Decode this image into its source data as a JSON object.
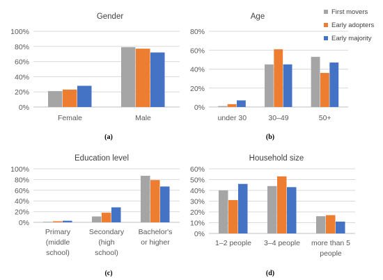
{
  "colors": {
    "first_movers": "#A5A5A5",
    "early_adopters": "#ED7D31",
    "early_majority": "#4472C4",
    "gridline": "#D9D9D9",
    "axis": "#BFBFBF"
  },
  "legend": {
    "items": [
      {
        "label": "First movers",
        "color": "#A5A5A5"
      },
      {
        "label": "Early adopters",
        "color": "#ED7D31"
      },
      {
        "label": "Early majority",
        "color": "#4472C4"
      }
    ],
    "placement": "top-right"
  },
  "chart_data": [
    {
      "type": "bar",
      "panel": "(a)",
      "title": "Gender",
      "categories": [
        [
          "Female"
        ],
        [
          "Male"
        ]
      ],
      "series": [
        {
          "name": "First movers",
          "values": [
            21,
            79
          ]
        },
        {
          "name": "Early adopters",
          "values": [
            23,
            77
          ]
        },
        {
          "name": "Early majority",
          "values": [
            28,
            72
          ]
        }
      ],
      "ylim": [
        0,
        100
      ],
      "yticks": [
        "0%",
        "20%",
        "40%",
        "60%",
        "80%",
        "100%"
      ],
      "ystep": 20,
      "grid": true
    },
    {
      "type": "bar",
      "panel": "(b)",
      "title": "Age",
      "categories": [
        [
          "under 30"
        ],
        [
          "30–49"
        ],
        [
          "50+"
        ]
      ],
      "series": [
        {
          "name": "First movers",
          "values": [
            1,
            45,
            53
          ]
        },
        {
          "name": "Early adopters",
          "values": [
            3,
            61,
            36
          ]
        },
        {
          "name": "Early majority",
          "values": [
            7,
            45,
            47
          ]
        }
      ],
      "ylim": [
        0,
        80
      ],
      "yticks": [
        "0%",
        "20%",
        "40%",
        "60%",
        "80%"
      ],
      "ystep": 20,
      "grid": true
    },
    {
      "type": "bar",
      "panel": "(c)",
      "title": "Education level",
      "categories": [
        [
          "Primary",
          "(middle",
          "school)"
        ],
        [
          "Secondary",
          "(high",
          "school)"
        ],
        [
          "Bachelor's",
          "or higher"
        ]
      ],
      "series": [
        {
          "name": "First movers",
          "values": [
            1,
            11,
            87
          ]
        },
        {
          "name": "Early adopters",
          "values": [
            2,
            18,
            79
          ]
        },
        {
          "name": "Early majority",
          "values": [
            3,
            28,
            67
          ]
        }
      ],
      "ylim": [
        0,
        100
      ],
      "yticks": [
        "0%",
        "20%",
        "40%",
        "60%",
        "80%",
        "100%"
      ],
      "ystep": 20,
      "grid": true
    },
    {
      "type": "bar",
      "panel": "(d)",
      "title": "Household size",
      "categories": [
        [
          "1–2 people"
        ],
        [
          "3–4 people"
        ],
        [
          "more than 5",
          "people"
        ]
      ],
      "series": [
        {
          "name": "First movers",
          "values": [
            40,
            44,
            16
          ]
        },
        {
          "name": "Early adopters",
          "values": [
            31,
            53,
            17
          ]
        },
        {
          "name": "Early majority",
          "values": [
            46,
            43,
            11
          ]
        }
      ],
      "ylim": [
        0,
        60
      ],
      "yticks": [
        "0%",
        "10%",
        "20%",
        "30%",
        "40%",
        "50%",
        "60%"
      ],
      "ystep": 10,
      "grid": true
    }
  ]
}
